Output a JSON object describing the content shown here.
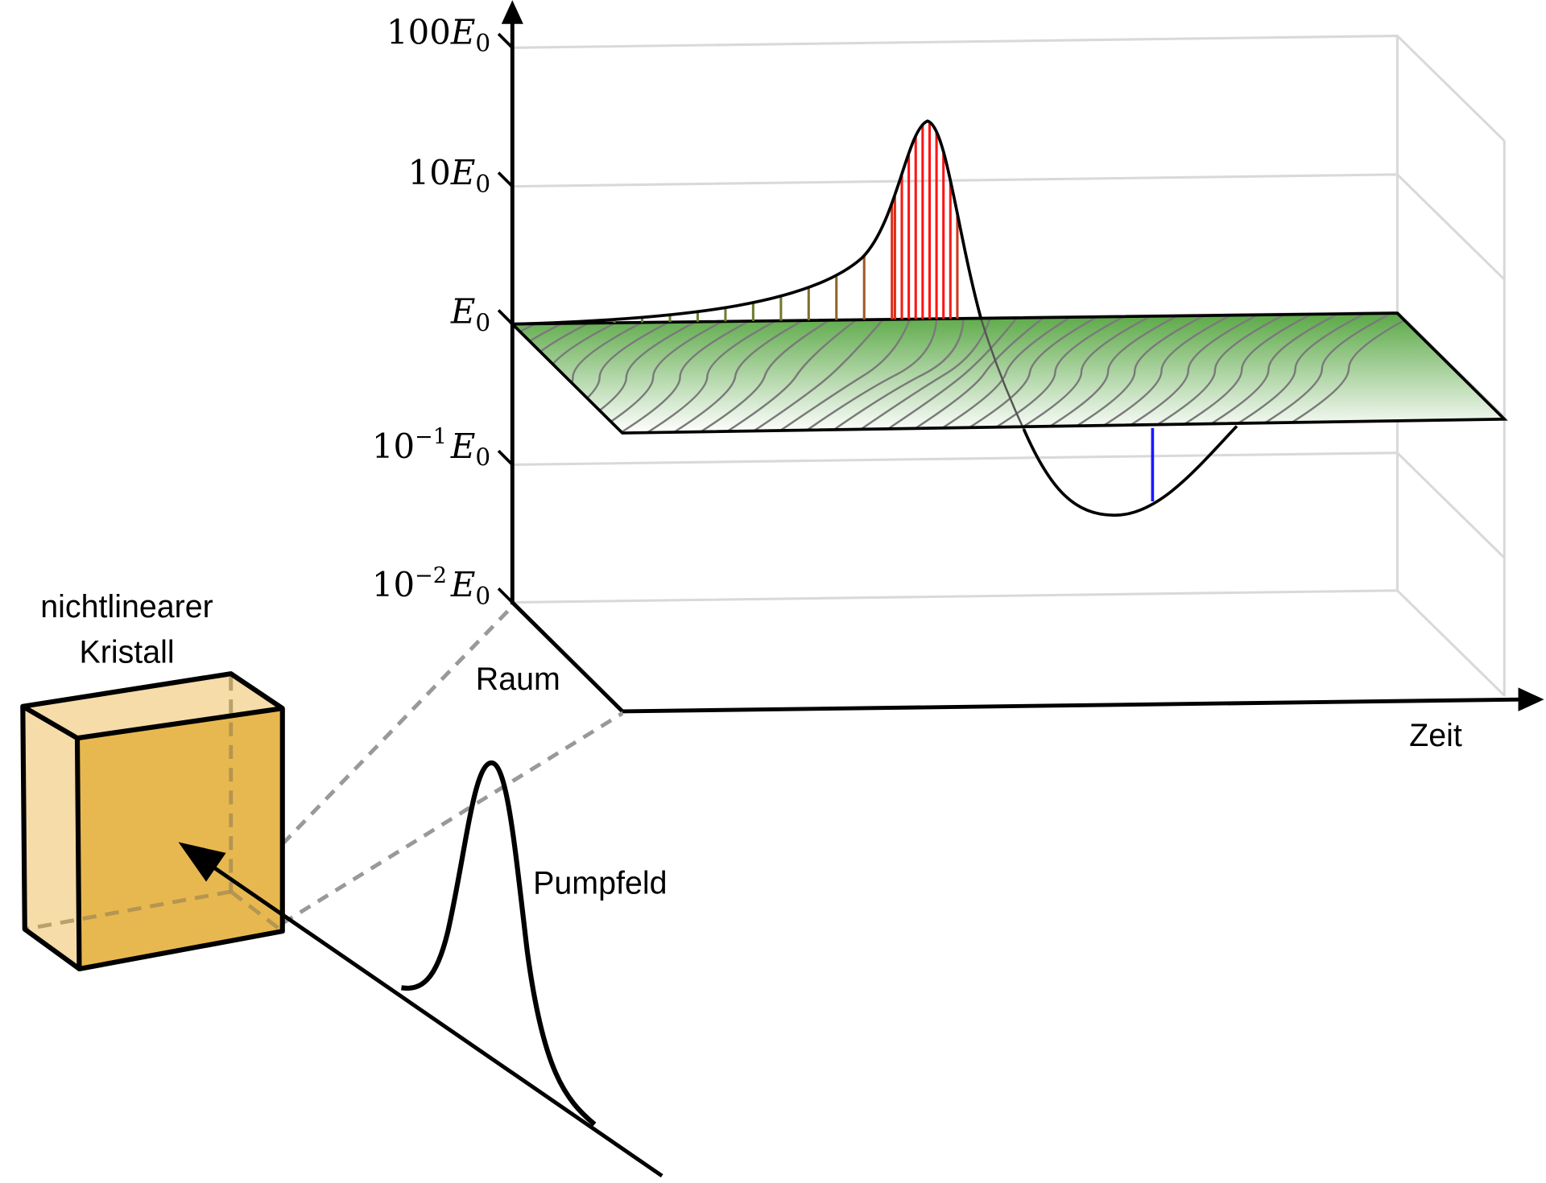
{
  "labels": {
    "crystal_line1": "nichtlinearer",
    "crystal_line2": "Kristall",
    "space_axis": "Raum",
    "time_axis": "Zeit",
    "pump": "Pumpfeld"
  },
  "y_axis": {
    "scale": "log",
    "ticks": [
      {
        "coef": "100",
        "exp": "",
        "sym": "E",
        "sub": "0"
      },
      {
        "coef": "10",
        "exp": "",
        "sym": "E",
        "sub": "0"
      },
      {
        "coef": "",
        "exp": "",
        "sym": "E",
        "sub": "0"
      },
      {
        "coef": "10",
        "exp": "−1",
        "sym": "E",
        "sub": "0"
      },
      {
        "coef": "10",
        "exp": "−2",
        "sym": "E",
        "sub": "0"
      }
    ]
  },
  "colors": {
    "crystal_front": "#e8b850",
    "crystal_side": "#f5dca8",
    "plane_green": "#5aa845",
    "peak_stems": "#ff1a1a",
    "dip_stem": "#1a1aff",
    "grid": "#d9d9d9"
  }
}
